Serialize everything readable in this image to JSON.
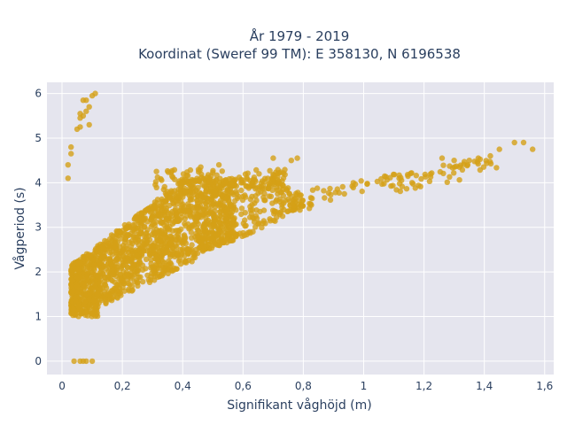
{
  "chart_data": {
    "type": "scatter",
    "title_line1": "År 1979 - 2019",
    "title_line2": "Koordinat (Sweref 99 TM): E 358130, N 6196538",
    "xlabel": "Signifikant våghöjd (m)",
    "ylabel": "Vågperiod (s)",
    "xlim": [
      -0.05,
      1.63
    ],
    "ylim": [
      -0.3,
      6.25
    ],
    "x_ticks": [
      0,
      0.2,
      0.4,
      0.6,
      0.8,
      1,
      1.2,
      1.4,
      1.6
    ],
    "x_tick_labels": [
      "0",
      "0,2",
      "0,4",
      "0,6",
      "0,8",
      "1",
      "1,2",
      "1,4",
      "1,6"
    ],
    "y_ticks": [
      0,
      1,
      2,
      3,
      4,
      5,
      6
    ],
    "y_tick_labels": [
      "0",
      "1",
      "2",
      "3",
      "4",
      "5",
      "6"
    ],
    "grid": true,
    "marker_color": "#D4A017",
    "plot_bg": "#E5E5EE",
    "outliers": [
      [
        0.02,
        4.1
      ],
      [
        0.02,
        4.4
      ],
      [
        0.03,
        4.65
      ],
      [
        0.03,
        4.8
      ],
      [
        0.05,
        5.2
      ],
      [
        0.06,
        5.25
      ],
      [
        0.06,
        5.45
      ],
      [
        0.07,
        5.5
      ],
      [
        0.08,
        5.6
      ],
      [
        0.08,
        5.85
      ],
      [
        0.09,
        5.3
      ],
      [
        0.09,
        5.7
      ],
      [
        0.1,
        5.95
      ],
      [
        0.11,
        6.0
      ],
      [
        0.07,
        5.85
      ],
      [
        0.06,
        5.55
      ],
      [
        0.04,
        0.0
      ],
      [
        0.06,
        0.0
      ],
      [
        0.07,
        0.0
      ],
      [
        0.08,
        0.0
      ],
      [
        0.1,
        0.0
      ],
      [
        1.45,
        4.75
      ],
      [
        1.5,
        4.9
      ],
      [
        1.53,
        4.9
      ],
      [
        1.56,
        4.75
      ],
      [
        1.42,
        4.6
      ],
      [
        1.38,
        4.55
      ],
      [
        1.35,
        4.5
      ],
      [
        1.3,
        4.5
      ],
      [
        1.26,
        4.55
      ],
      [
        0.76,
        4.5
      ],
      [
        0.7,
        4.55
      ],
      [
        0.78,
        4.55
      ],
      [
        0.52,
        4.4
      ],
      [
        0.46,
        4.35
      ]
    ]
  }
}
